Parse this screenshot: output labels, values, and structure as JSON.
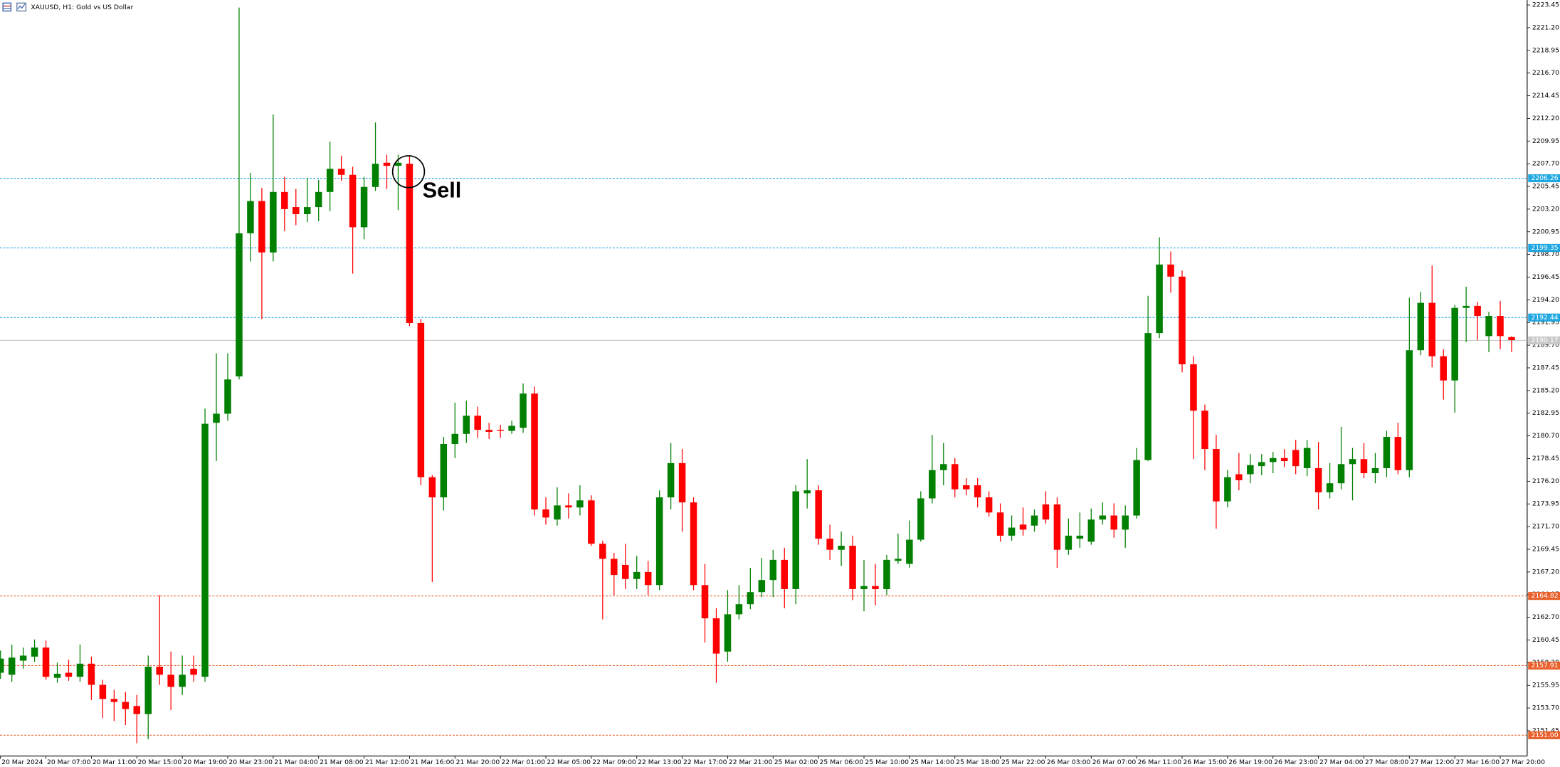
{
  "chart_data": {
    "type": "candlestick",
    "title": "XAUUSD, H1: Gold vs US Dollar",
    "annotation": "Sell",
    "up_color": "#008000",
    "down_color": "#ff0000",
    "ylim": [
      2148.94,
      2223.94
    ],
    "yticks": [
      2223.45,
      {
        "value": 2221.2,
        "label": "2221.20"
      },
      2218.95,
      {
        "value": 2216.7,
        "label": "2216.70"
      },
      2214.45,
      {
        "value": 2212.2,
        "label": "2212.20"
      },
      2209.95,
      {
        "value": 2207.7,
        "label": "2207.70"
      },
      2205.45,
      {
        "value": 2203.2,
        "label": "2203.20"
      },
      2200.95,
      {
        "value": 2198.7,
        "label": "2198.70"
      },
      2196.45,
      {
        "value": 2194.2,
        "label": "2194.20"
      },
      2191.95,
      {
        "value": 2189.7,
        "label": "2189.70"
      },
      2187.45,
      {
        "value": 2185.2,
        "label": "2185.20"
      },
      2182.95,
      {
        "value": 2180.7,
        "label": "2180.70"
      },
      2178.45,
      {
        "value": 2176.2,
        "label": "2176.20"
      },
      2173.95,
      {
        "value": 2171.7,
        "label": "2171.70"
      },
      2169.45,
      {
        "value": 2167.2,
        "label": "2167.20"
      },
      2164.95,
      {
        "value": 2162.7,
        "label": "2162.70"
      },
      2160.45,
      {
        "value": 2158.2,
        "label": "2158.20"
      },
      2155.95,
      {
        "value": 2153.7,
        "label": "2153.70"
      },
      2151.45
    ],
    "levels": [
      {
        "value": 2206.26,
        "color": "#1ea7e0",
        "style": "dashed"
      },
      {
        "value": 2199.35,
        "color": "#1ea7e0",
        "style": "dashed"
      },
      {
        "value": 2192.44,
        "color": "#1ea7e0",
        "style": "dashed"
      },
      {
        "value": 2190.17,
        "color": "#c8c8c8",
        "style": "solid"
      },
      {
        "value": 2164.82,
        "color": "#e8602c",
        "style": "dashed"
      },
      {
        "value": 2157.91,
        "color": "#e8602c",
        "style": "dashed"
      },
      {
        "value": 2151,
        "label": "2151.00",
        "color": "#e8602c",
        "style": "dashed"
      }
    ],
    "categories": [
      "20 Mar 2024",
      null,
      null,
      null,
      "20 Mar 07:00",
      null,
      null,
      null,
      "20 Mar 11:00",
      null,
      null,
      null,
      "20 Mar 15:00",
      null,
      null,
      null,
      "20 Mar 19:00",
      null,
      null,
      null,
      "20 Mar 23:00",
      null,
      null,
      null,
      "21 Mar 04:00",
      null,
      null,
      null,
      "21 Mar 08:00",
      null,
      null,
      null,
      "21 Mar 12:00",
      null,
      null,
      null,
      "21 Mar 16:00",
      null,
      null,
      null,
      "21 Mar 20:00",
      null,
      null,
      null,
      "22 Mar 01:00",
      null,
      null,
      null,
      "22 Mar 05:00",
      null,
      null,
      null,
      "22 Mar 09:00",
      null,
      null,
      null,
      "22 Mar 13:00",
      null,
      null,
      null,
      "22 Mar 17:00",
      null,
      null,
      null,
      "22 Mar 21:00",
      null,
      null,
      null,
      "25 Mar 02:00",
      null,
      null,
      null,
      "25 Mar 06:00",
      null,
      null,
      null,
      "25 Mar 10:00",
      null,
      null,
      null,
      "25 Mar 14:00",
      null,
      null,
      null,
      "25 Mar 18:00",
      null,
      null,
      null,
      "25 Mar 22:00",
      null,
      null,
      null,
      "26 Mar 03:00",
      null,
      null,
      null,
      "26 Mar 07:00",
      null,
      null,
      null,
      "26 Mar 11:00",
      null,
      null,
      null,
      "26 Mar 15:00",
      null,
      null,
      null,
      "26 Mar 19:00",
      null,
      null,
      null,
      "26 Mar 23:00",
      null,
      null,
      null,
      "27 Mar 04:00",
      null,
      null,
      null,
      "27 Mar 08:00",
      null,
      null,
      null,
      "27 Mar 12:00",
      null,
      null,
      null,
      "27 Mar 16:00",
      null,
      null,
      null,
      "27 Mar 20:00",
      null
    ],
    "open": [
      2157.2,
      2157.0,
      2158.4,
      2158.8,
      2159.7,
      2156.7,
      2157.2,
      2156.8,
      2158.1,
      2156.0,
      2154.6,
      2154.3,
      2153.9,
      2153.1,
      2157.8,
      2157.0,
      2155.8,
      2157.6,
      2156.8,
      2182.0,
      2182.9,
      2186.6,
      2200.8,
      2204.0,
      2198.9,
      2204.9,
      2203.4,
      2202.7,
      2203.4,
      2204.9,
      2207.2,
      2206.6,
      2201.4,
      2205.4,
      2207.8,
      2207.5,
      2207.7,
      2191.9,
      2176.6,
      2174.6,
      2179.9,
      2180.9,
      2182.7,
      2181.3,
      2181.3,
      2181.2,
      2181.5,
      2184.9,
      2173.4,
      2172.4,
      2173.8,
      2173.6,
      2174.3,
      2170.0,
      2168.5,
      2167.9,
      2166.5,
      2167.2,
      2165.9,
      2174.6,
      2178.0,
      2174.1,
      2165.9,
      2162.6,
      2159.3,
      2163.0,
      2164.0,
      2165.2,
      2166.4,
      2168.4,
      2165.5,
      2175.0,
      2175.3,
      2170.5,
      2169.4,
      2169.8,
      2165.5,
      2165.8,
      2165.5,
      2168.3,
      2168.0,
      2170.4,
      2174.5,
      2177.3,
      2177.9,
      2175.8,
      2175.8,
      2174.6,
      2173.1,
      2170.8,
      2171.9,
      2171.8,
      2173.9,
      2173.9,
      2169.4,
      2170.5,
      2170.2,
      2172.4,
      2172.8,
      2171.4,
      2172.8,
      2178.3,
      2190.9,
      2197.7,
      2196.5,
      2187.8,
      2183.2,
      2179.4,
      2174.2,
      2176.9,
      2176.9,
      2177.7,
      2178.1,
      2178.5,
      2179.3,
      2177.5,
      2177.5,
      2175.1,
      2176.0,
      2177.9,
      2178.4,
      2177.0,
      2177.5,
      2180.6,
      2177.3,
      2189.2,
      2193.9,
      2188.6,
      2186.2,
      2193.4,
      2193.6,
      2190.6,
      2192.6,
      2190.5
    ],
    "high": [
      2159.4,
      2160.0,
      2159.7,
      2160.5,
      2160.4,
      2158.2,
      2158.5,
      2160.0,
      2158.8,
      2156.5,
      2155.5,
      2155.3,
      2155.0,
      2158.9,
      2164.9,
      2159.3,
      2158.9,
      2158.9,
      2183.4,
      2188.9,
      2188.9,
      2223.2,
      2206.8,
      2205.3,
      2212.6,
      2206.4,
      2205.2,
      2206.3,
      2206.1,
      2209.9,
      2208.5,
      2207.4,
      2206.4,
      2211.8,
      2208.6,
      2208.6,
      2208.5,
      2192.3,
      2176.8,
      2180.6,
      2184.0,
      2184.2,
      2183.6,
      2182.0,
      2181.8,
      2182.2,
      2185.9,
      2185.6,
      2174.6,
      2175.6,
      2175.0,
      2175.8,
      2174.8,
      2170.3,
      2169.1,
      2170.0,
      2168.8,
      2168.3,
      2175.3,
      2180.0,
      2179.4,
      2174.6,
      2168.0,
      2163.6,
      2165.4,
      2165.9,
      2167.6,
      2168.6,
      2169.4,
      2169.6,
      2175.8,
      2178.4,
      2175.8,
      2171.9,
      2171.2,
      2170.8,
      2168.4,
      2168.0,
      2168.9,
      2171.0,
      2172.3,
      2175.2,
      2180.8,
      2180.0,
      2178.5,
      2176.5,
      2176.5,
      2175.2,
      2174.0,
      2172.8,
      2173.6,
      2173.4,
      2175.2,
      2174.6,
      2172.5,
      2173.1,
      2173.5,
      2174.1,
      2174.0,
      2173.8,
      2179.5,
      2194.6,
      2200.4,
      2199.0,
      2197.1,
      2188.6,
      2183.8,
      2180.8,
      2177.3,
      2179.0,
      2178.9,
      2178.9,
      2179.1,
      2179.4,
      2180.3,
      2180.3,
      2180.1,
      2178.0,
      2181.6,
      2179.5,
      2180.0,
      2179.0,
      2181.2,
      2182.0,
      2194.4,
      2195.0,
      2197.6,
      2189.3,
      2193.7,
      2195.5,
      2194.0,
      2193.0,
      2194.1,
      2190.6
    ],
    "low": [
      2156.6,
      2156.3,
      2157.6,
      2158.3,
      2156.5,
      2156.2,
      2156.4,
      2156.3,
      2154.5,
      2152.7,
      2152.4,
      2152.0,
      2150.2,
      2150.6,
      2156.0,
      2153.5,
      2155.0,
      2156.3,
      2156.3,
      2178.2,
      2182.2,
      2186.3,
      2198.0,
      2192.3,
      2198.0,
      2201.0,
      2201.6,
      2201.9,
      2202.0,
      2203.0,
      2206.0,
      2196.8,
      2200.2,
      2205.0,
      2205.2,
      2203.1,
      2191.6,
      2175.8,
      2166.2,
      2173.3,
      2178.5,
      2180.0,
      2180.5,
      2180.4,
      2180.5,
      2180.9,
      2181.0,
      2172.8,
      2171.9,
      2171.8,
      2172.5,
      2172.8,
      2169.8,
      2162.5,
      2164.9,
      2165.5,
      2165.5,
      2164.9,
      2165.4,
      2173.4,
      2171.2,
      2165.4,
      2160.2,
      2156.2,
      2158.3,
      2162.5,
      2163.5,
      2164.7,
      2164.7,
      2163.6,
      2164.0,
      2173.5,
      2169.9,
      2168.4,
      2167.8,
      2164.4,
      2163.3,
      2163.9,
      2164.9,
      2168.0,
      2167.6,
      2170.2,
      2174.0,
      2175.8,
      2174.6,
      2174.8,
      2173.6,
      2172.7,
      2170.2,
      2170.3,
      2170.8,
      2171.2,
      2172.0,
      2167.6,
      2168.9,
      2169.6,
      2169.9,
      2171.9,
      2170.6,
      2169.6,
      2172.5,
      2178.2,
      2190.4,
      2194.9,
      2187.0,
      2178.4,
      2177.3,
      2171.5,
      2173.6,
      2175.3,
      2176.0,
      2176.8,
      2177.0,
      2177.6,
      2176.9,
      2176.7,
      2173.4,
      2174.5,
      2175.4,
      2174.3,
      2176.5,
      2176.0,
      2176.6,
      2176.9,
      2176.6,
      2188.7,
      2187.5,
      2184.3,
      2183.0,
      2190.0,
      2190.2,
      2189.0,
      2189.3,
      2189.0
    ],
    "close": [
      2158.6,
      2158.7,
      2158.9,
      2159.7,
      2156.8,
      2157.1,
      2156.8,
      2158.1,
      2156.0,
      2154.6,
      2154.3,
      2153.6,
      2153.1,
      2157.8,
      2157.0,
      2155.8,
      2157.0,
      2157.0,
      2181.9,
      2182.9,
      2186.3,
      2200.8,
      2204.0,
      2198.9,
      2204.9,
      2203.2,
      2202.7,
      2203.4,
      2204.9,
      2207.2,
      2206.6,
      2201.4,
      2205.4,
      2207.7,
      2207.5,
      2207.8,
      2191.9,
      2176.6,
      2174.6,
      2179.9,
      2180.9,
      2182.7,
      2181.3,
      2181.1,
      2181.2,
      2181.7,
      2184.9,
      2173.4,
      2172.6,
      2173.8,
      2173.6,
      2174.3,
      2170.0,
      2168.5,
      2166.9,
      2166.5,
      2167.2,
      2165.9,
      2174.6,
      2178.0,
      2174.1,
      2165.9,
      2162.6,
      2159.1,
      2163.0,
      2164.0,
      2165.2,
      2166.4,
      2168.4,
      2165.5,
      2175.2,
      2175.3,
      2170.5,
      2169.4,
      2169.8,
      2165.5,
      2165.8,
      2165.5,
      2168.4,
      2168.5,
      2170.4,
      2174.5,
      2177.3,
      2177.9,
      2175.4,
      2175.4,
      2174.6,
      2173.1,
      2170.8,
      2171.6,
      2171.4,
      2172.8,
      2172.4,
      2169.4,
      2170.8,
      2170.8,
      2172.4,
      2172.8,
      2171.4,
      2172.8,
      2178.3,
      2190.9,
      2197.7,
      2196.5,
      2187.8,
      2183.2,
      2179.4,
      2174.2,
      2176.6,
      2176.3,
      2177.8,
      2178.1,
      2178.5,
      2178.2,
      2177.7,
      2179.5,
      2175.1,
      2176.0,
      2177.9,
      2178.4,
      2177.0,
      2177.5,
      2180.6,
      2177.3,
      2189.2,
      2193.9,
      2188.6,
      2186.2,
      2193.4,
      2193.6,
      2192.6,
      2192.6,
      2190.6,
      2190.2
    ]
  }
}
